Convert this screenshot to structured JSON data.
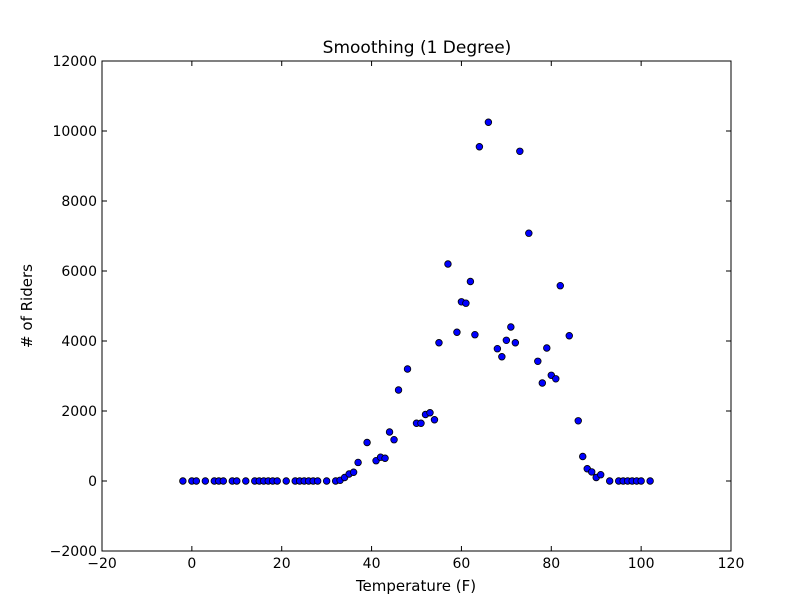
{
  "chart_data": {
    "type": "scatter",
    "title": "Smoothing (1 Degree)",
    "xlabel": "Temperature (F)",
    "ylabel": "# of Riders",
    "xlim": [
      -20,
      120
    ],
    "ylim": [
      -2000,
      12000
    ],
    "xticks": [
      -20,
      0,
      20,
      40,
      60,
      80,
      100,
      120
    ],
    "yticks": [
      -2000,
      0,
      2000,
      4000,
      6000,
      8000,
      10000,
      12000
    ],
    "xtick_labels": [
      "−20",
      "0",
      "20",
      "40",
      "60",
      "80",
      "100",
      "120"
    ],
    "ytick_labels": [
      "−2000",
      "0",
      "2000",
      "4000",
      "6000",
      "8000",
      "10000",
      "12000"
    ],
    "grid": false,
    "marker_color": "#0000ff",
    "marker_edge_color": "#000000",
    "x": [
      -2,
      0,
      1,
      3,
      5,
      6,
      7,
      9,
      10,
      12,
      14,
      15,
      16,
      17,
      18,
      19,
      21,
      23,
      24,
      25,
      26,
      27,
      28,
      30,
      32,
      33,
      34,
      35,
      36,
      37,
      39,
      41,
      42,
      43,
      44,
      45,
      46,
      48,
      50,
      51,
      52,
      53,
      54,
      55,
      57,
      59,
      60,
      61,
      62,
      63,
      64,
      66,
      68,
      69,
      70,
      71,
      72,
      73,
      75,
      77,
      78,
      79,
      80,
      81,
      82,
      84,
      86,
      87,
      88,
      89,
      90,
      91,
      93,
      95,
      96,
      97,
      98,
      99,
      100,
      102
    ],
    "y": [
      0,
      0,
      0,
      0,
      0,
      0,
      0,
      0,
      0,
      0,
      0,
      0,
      0,
      0,
      0,
      0,
      0,
      0,
      0,
      0,
      0,
      0,
      0,
      0,
      0,
      20,
      100,
      200,
      250,
      530,
      1100,
      580,
      680,
      650,
      1400,
      1180,
      2600,
      3200,
      1650,
      1650,
      1900,
      1950,
      1750,
      3950,
      6200,
      4250,
      5120,
      5080,
      5700,
      4180,
      9550,
      10250,
      3780,
      3550,
      4020,
      4400,
      3950,
      9420,
      7080,
      3420,
      2800,
      3800,
      3020,
      2920,
      5580,
      4150,
      1720,
      700,
      350,
      260,
      100,
      180,
      0,
      0,
      0,
      0,
      0,
      0,
      0,
      0
    ]
  }
}
